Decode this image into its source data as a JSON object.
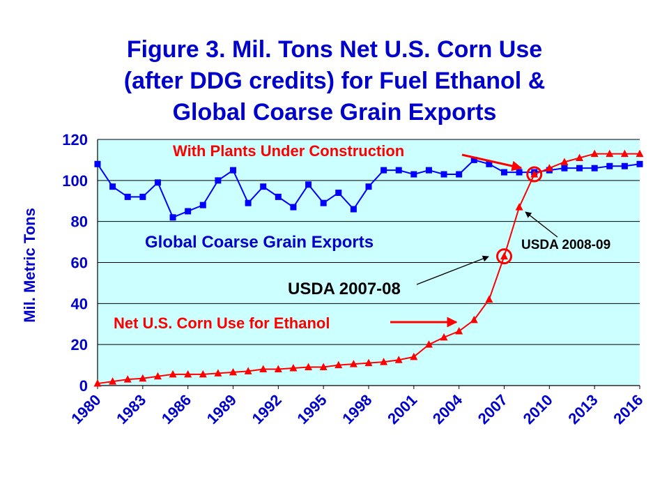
{
  "title_lines": [
    "Figure 3. Mil. Tons Net U.S. Corn Use",
    "(after DDG credits) for Fuel Ethanol &",
    "Global Coarse Grain Exports"
  ],
  "colors": {
    "title": "#0000cc",
    "plot_background": "#ccffff",
    "exports_series": "#0000ff",
    "ethanol_series": "#ff0000",
    "gridline": "#000000",
    "annotation_text_black": "#000000"
  },
  "chart_data": {
    "type": "line",
    "ylabel": "Mil. Metric Tons",
    "xlabel": "",
    "xlim": [
      1980,
      2016
    ],
    "ylim": [
      0,
      120
    ],
    "y_ticks": [
      0,
      20,
      40,
      60,
      80,
      100,
      120
    ],
    "x_ticks": [
      1980,
      1983,
      1986,
      1989,
      1992,
      1995,
      1998,
      2001,
      2004,
      2007,
      2010,
      2013,
      2016
    ],
    "grid": "horizontal",
    "x": [
      1980,
      1981,
      1982,
      1983,
      1984,
      1985,
      1986,
      1987,
      1988,
      1989,
      1990,
      1991,
      1992,
      1993,
      1994,
      1995,
      1996,
      1997,
      1998,
      1999,
      2000,
      2001,
      2002,
      2003,
      2004,
      2005,
      2006,
      2007,
      2008,
      2009,
      2010,
      2011,
      2012,
      2013,
      2014,
      2015,
      2016
    ],
    "series": [
      {
        "name": "Global Coarse Grain Exports",
        "marker": "square",
        "values": [
          108,
          97,
          92,
          92,
          99,
          82,
          85,
          88,
          100,
          105,
          89,
          97,
          92,
          87,
          98,
          89,
          94,
          86,
          97,
          105,
          105,
          103,
          105,
          103,
          103,
          110,
          108,
          104,
          104,
          104,
          105,
          106,
          106,
          106,
          107,
          107,
          108
        ]
      },
      {
        "name": "Net U.S. Corn Use for Ethanol",
        "marker": "triangle",
        "values": [
          1,
          2,
          3,
          3.5,
          4.5,
          5.5,
          5.5,
          5.5,
          6,
          6.5,
          7,
          8,
          8,
          8.5,
          9,
          9,
          10,
          10.5,
          11,
          11.5,
          12.5,
          14,
          20,
          23.5,
          26.5,
          32,
          42,
          63,
          87,
          103,
          106,
          109,
          111,
          113,
          113,
          113,
          113
        ]
      }
    ],
    "annotations": [
      {
        "text": "With Plants Under Construction",
        "color": "red"
      },
      {
        "text": "Global Coarse Grain Exports",
        "color": "blue"
      },
      {
        "text": "USDA 2008-09",
        "color": "black"
      },
      {
        "text": "USDA 2007-08",
        "color": "black"
      },
      {
        "text": "Net U.S. Corn Use for Ethanol",
        "color": "red"
      }
    ],
    "highlight_circles": [
      {
        "x": 2007,
        "y": 63
      },
      {
        "x": 2009,
        "y": 103
      }
    ]
  }
}
